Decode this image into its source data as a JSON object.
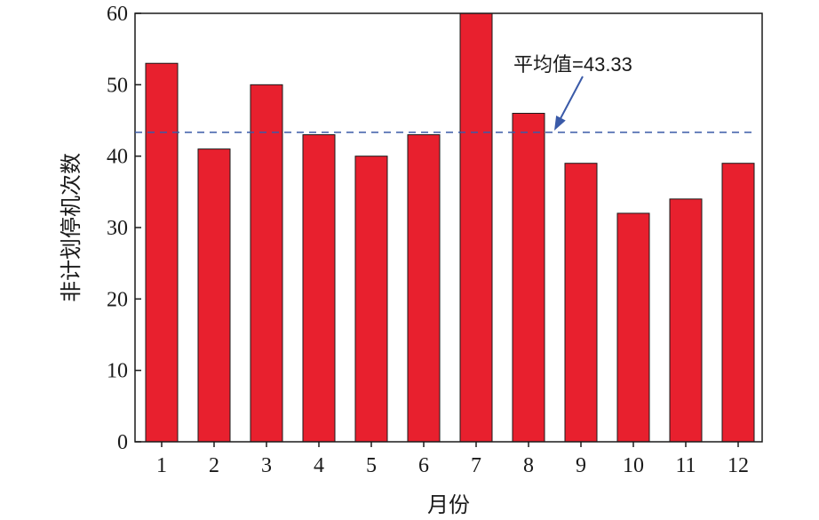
{
  "chart_data": {
    "type": "bar",
    "categories": [
      "1",
      "2",
      "3",
      "4",
      "5",
      "6",
      "7",
      "8",
      "9",
      "10",
      "11",
      "12"
    ],
    "values": [
      53,
      41,
      50,
      43,
      40,
      43,
      60,
      46,
      39,
      32,
      34,
      39
    ],
    "xlabel": "月份",
    "ylabel": "非计划停机次数",
    "ylim": [
      0,
      60
    ],
    "yticks": [
      "0",
      "10",
      "20",
      "30",
      "40",
      "50",
      "60"
    ],
    "grid": false,
    "bar_color": "#e8202e",
    "reference_line": {
      "value": 43.33,
      "style": "dashed",
      "color": "#3a5aa8",
      "label": "平均值=43.33"
    }
  }
}
